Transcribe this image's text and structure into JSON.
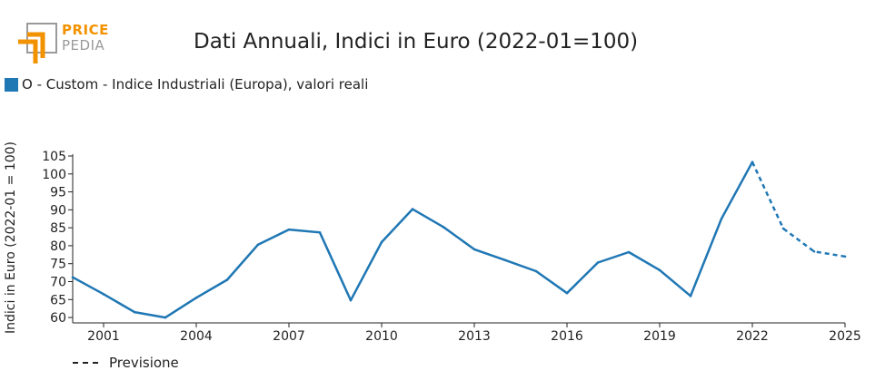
{
  "logo": {
    "line1": "PRICE",
    "line2": "PEDIA"
  },
  "chart_data": {
    "type": "line",
    "title": "Dati Annuali, Indici in Euro (2022-01=100)",
    "xlabel": "",
    "ylabel": "Indici in Euro (2022-01 = 100)",
    "xlim": [
      2000,
      2025
    ],
    "ylim": [
      58.5,
      105
    ],
    "x_ticks": [
      2001,
      2004,
      2007,
      2010,
      2013,
      2016,
      2019,
      2022,
      2025
    ],
    "y_ticks": [
      60,
      65,
      70,
      75,
      80,
      85,
      90,
      95,
      100,
      105
    ],
    "series": [
      {
        "name": "O - Custom - Indice Industriali (Europa), valori reali",
        "color": "#1f77b4",
        "x": [
          2000,
          2001,
          2002,
          2003,
          2004,
          2005,
          2006,
          2007,
          2008,
          2009,
          2010,
          2011,
          2012,
          2013,
          2014,
          2015,
          2016,
          2017,
          2018,
          2019,
          2020,
          2021,
          2022
        ],
        "values": [
          71.2,
          66.5,
          61.5,
          60.0,
          65.5,
          70.5,
          80.3,
          84.5,
          83.7,
          64.8,
          81.0,
          90.2,
          85.2,
          79.0,
          76.0,
          72.9,
          66.8,
          75.3,
          78.2,
          73.2,
          66.0,
          87.5,
          103.3
        ]
      },
      {
        "name": "Previsione",
        "color": "#1f77b4",
        "dashed": true,
        "x": [
          2022,
          2023,
          2024,
          2025
        ],
        "values": [
          103.3,
          84.8,
          78.4,
          77.0
        ]
      }
    ],
    "legend": {
      "entries": [
        "O - Custom - Indice Industriali (Europa), valori reali",
        "Previsione"
      ],
      "position": "top-left"
    }
  }
}
